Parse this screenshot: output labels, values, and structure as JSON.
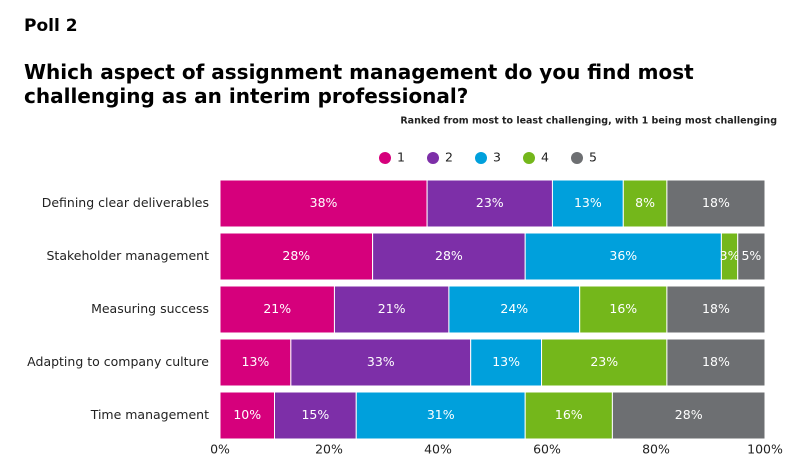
{
  "poll_label": "Poll 2",
  "chart_data": {
    "type": "stacked-barh",
    "title": "Which aspect of assignment management do you find most challenging as an interim professional?",
    "subtitle": "Ranked from most to least challenging, with 1 being most challenging",
    "categories": [
      "Defining clear deliverables",
      "Stakeholder management",
      "Measuring success",
      "Adapting to company culture",
      "Time management"
    ],
    "series": [
      {
        "name": "1",
        "color": "#d6007c",
        "values": [
          38,
          28,
          21,
          13,
          10
        ],
        "value_labels": [
          "38%",
          "28%",
          "21%",
          "13%",
          "10%"
        ]
      },
      {
        "name": "2",
        "color": "#7d2fa8",
        "values": [
          23,
          28,
          21,
          33,
          15
        ],
        "value_labels": [
          "23%",
          "28%",
          "21%",
          "33%",
          "15%"
        ]
      },
      {
        "name": "3",
        "color": "#00a0dc",
        "values": [
          13,
          36,
          24,
          13,
          31
        ],
        "value_labels": [
          "13%",
          "36%",
          "24%",
          "13%",
          "31%"
        ]
      },
      {
        "name": "4",
        "color": "#74b71b",
        "values": [
          8,
          3,
          16,
          23,
          16
        ],
        "value_labels": [
          "8%",
          "3%",
          "16%",
          "23%",
          "16%"
        ]
      },
      {
        "name": "5",
        "color": "#6d6f72",
        "values": [
          18,
          5,
          18,
          18,
          28
        ],
        "value_labels": [
          "18%",
          "5%",
          "18%",
          "18%",
          "28%"
        ]
      }
    ],
    "xlim": [
      0,
      100
    ],
    "xticks": [
      {
        "value": 0,
        "label": "0%"
      },
      {
        "value": 20,
        "label": "20%"
      },
      {
        "value": 40,
        "label": "40%"
      },
      {
        "value": 60,
        "label": "60%"
      },
      {
        "value": 80,
        "label": "80%"
      },
      {
        "value": 100,
        "label": "100%"
      }
    ],
    "legend": "top"
  }
}
